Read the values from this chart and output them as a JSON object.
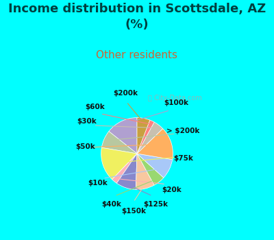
{
  "title": "Income distribution in Scottsdale, AZ\n(%)",
  "subtitle": "Other residents",
  "title_color": "#005f5f",
  "subtitle_color": "#cc6633",
  "background_top": "#00ffff",
  "background_chart": "#e8f5e9",
  "watermark": "City-Data.com",
  "labels": [
    "$100k",
    "> $200k",
    "$75k",
    "$20k",
    "$125k",
    "$150k",
    "$40k",
    "$10k",
    "$50k",
    "$30k",
    "$60k",
    "$200k"
  ],
  "values": [
    13.5,
    7.5,
    14.5,
    2.5,
    8.5,
    8.0,
    5.0,
    8.5,
    14.0,
    4.5,
    2.0,
    5.5
  ],
  "colors": [
    "#b0a0d0",
    "#b8c8a0",
    "#f0f060",
    "#ffb0b8",
    "#8888cc",
    "#f8c8a0",
    "#99d870",
    "#a8c8f8",
    "#ffb060",
    "#c8c0b0",
    "#ff8080",
    "#c8a040"
  ],
  "startangle": 90,
  "figsize": [
    4.0,
    3.5
  ],
  "dpi": 100
}
